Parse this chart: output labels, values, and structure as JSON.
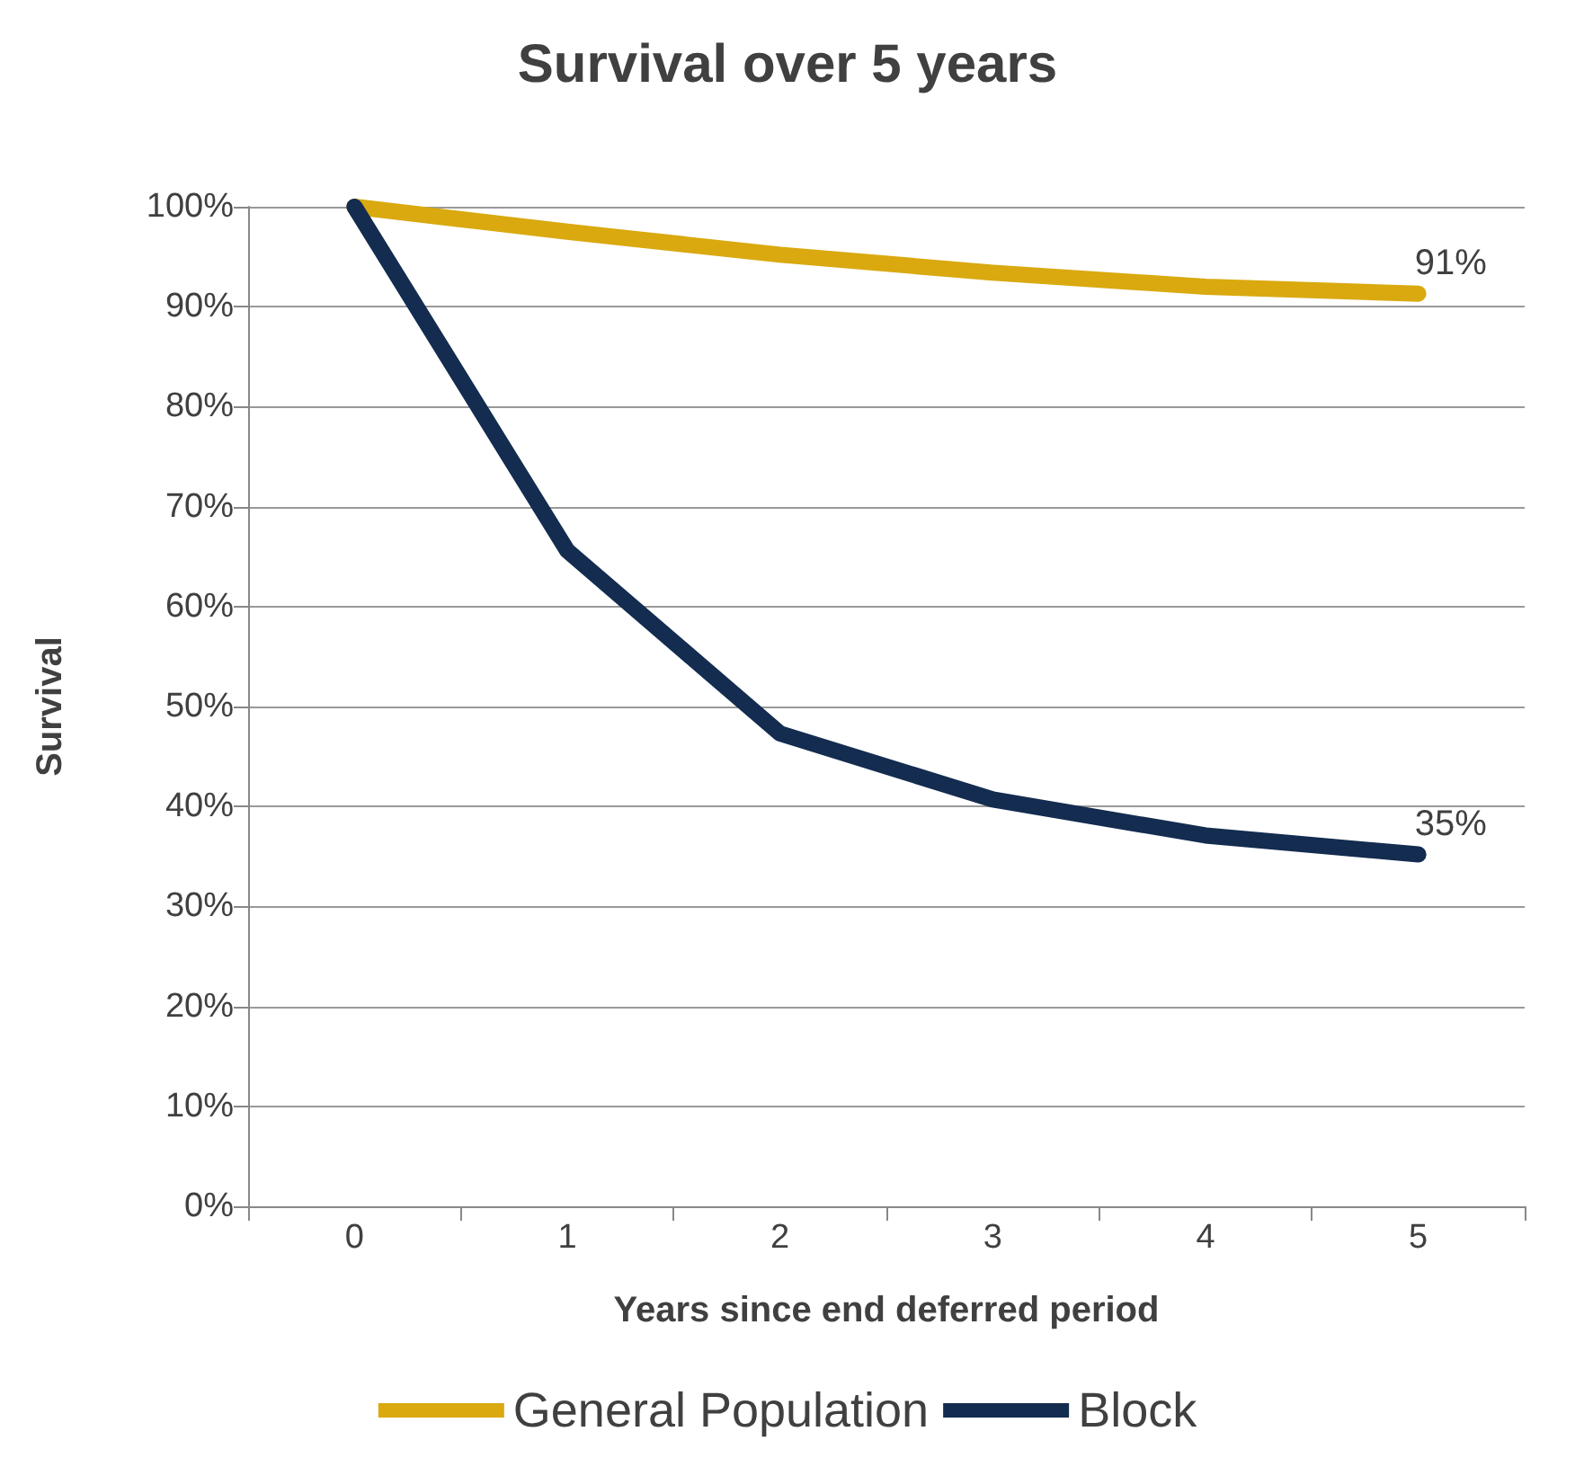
{
  "chart_data": {
    "type": "line",
    "title": "Survival over 5 years",
    "xlabel": "Years since end deferred period",
    "ylabel": "Survival",
    "categories": [
      "0",
      "1",
      "2",
      "3",
      "4",
      "5"
    ],
    "series": [
      {
        "name": "General Population",
        "color": "#d9a90f",
        "values": [
          100,
          97.5,
          95.2,
          93.4,
          92,
          91.3
        ],
        "value_labels": [
          null,
          null,
          null,
          null,
          null,
          "91%"
        ]
      },
      {
        "name": "Block",
        "color": "#132c4f",
        "values": [
          100,
          65.6,
          47.3,
          40.7,
          37.1,
          35.2
        ],
        "value_labels": [
          null,
          null,
          null,
          null,
          null,
          "35%"
        ]
      }
    ],
    "ylim": [
      0,
      100
    ],
    "yticks": [
      {
        "value": 0,
        "label": "0%"
      },
      {
        "value": 10,
        "label": "10%"
      },
      {
        "value": 20,
        "label": "20%"
      },
      {
        "value": 30,
        "label": "30%"
      },
      {
        "value": 40,
        "label": "40%"
      },
      {
        "value": 50,
        "label": "50%"
      },
      {
        "value": 60,
        "label": "60%"
      },
      {
        "value": 70,
        "label": "70%"
      },
      {
        "value": 80,
        "label": "80%"
      },
      {
        "value": 90,
        "label": "90%"
      },
      {
        "value": 100,
        "label": "100%"
      }
    ],
    "grid": "y",
    "legend": "bottom",
    "marker": "none",
    "line_style": "solid"
  }
}
